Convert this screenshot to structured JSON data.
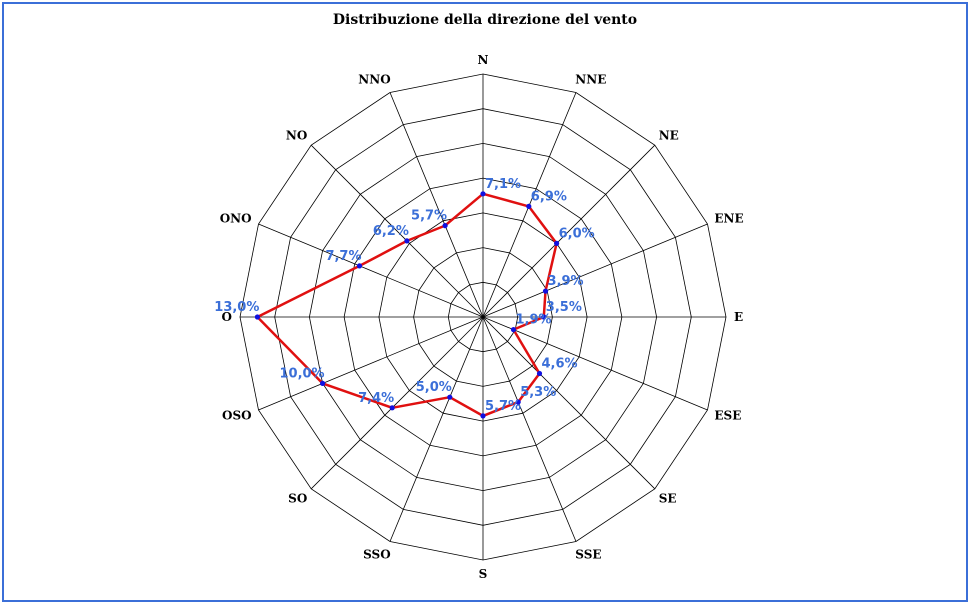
{
  "chart_data": {
    "type": "radar",
    "title": "Distribuzione della direzione del vento",
    "categories": [
      "N",
      "NNE",
      "NE",
      "ENE",
      "E",
      "ESE",
      "SE",
      "SSE",
      "S",
      "SSO",
      "SO",
      "OSO",
      "O",
      "ONO",
      "NO",
      "NNO"
    ],
    "values": [
      7.1,
      6.9,
      6.0,
      3.9,
      3.5,
      1.9,
      4.6,
      5.3,
      5.7,
      5.0,
      7.4,
      10.0,
      13.0,
      7.7,
      6.2,
      5.7
    ],
    "value_labels": [
      "7,1%",
      "6,9%",
      "6,0%",
      "3,9%",
      "3,5%",
      "1,9%",
      "4,6%",
      "5,3%",
      "5,7%",
      "5,0%",
      "7,4%",
      "10,0%",
      "13,0%",
      "7,7%",
      "6,2%",
      "5,7%"
    ],
    "rlim": [
      0,
      14
    ],
    "grid_rings": 7,
    "grid": true,
    "series_color": "#e01010",
    "marker_color": "#1010e0",
    "label_color": "#3b6fd8",
    "frame_color": "#3b6fd8"
  }
}
